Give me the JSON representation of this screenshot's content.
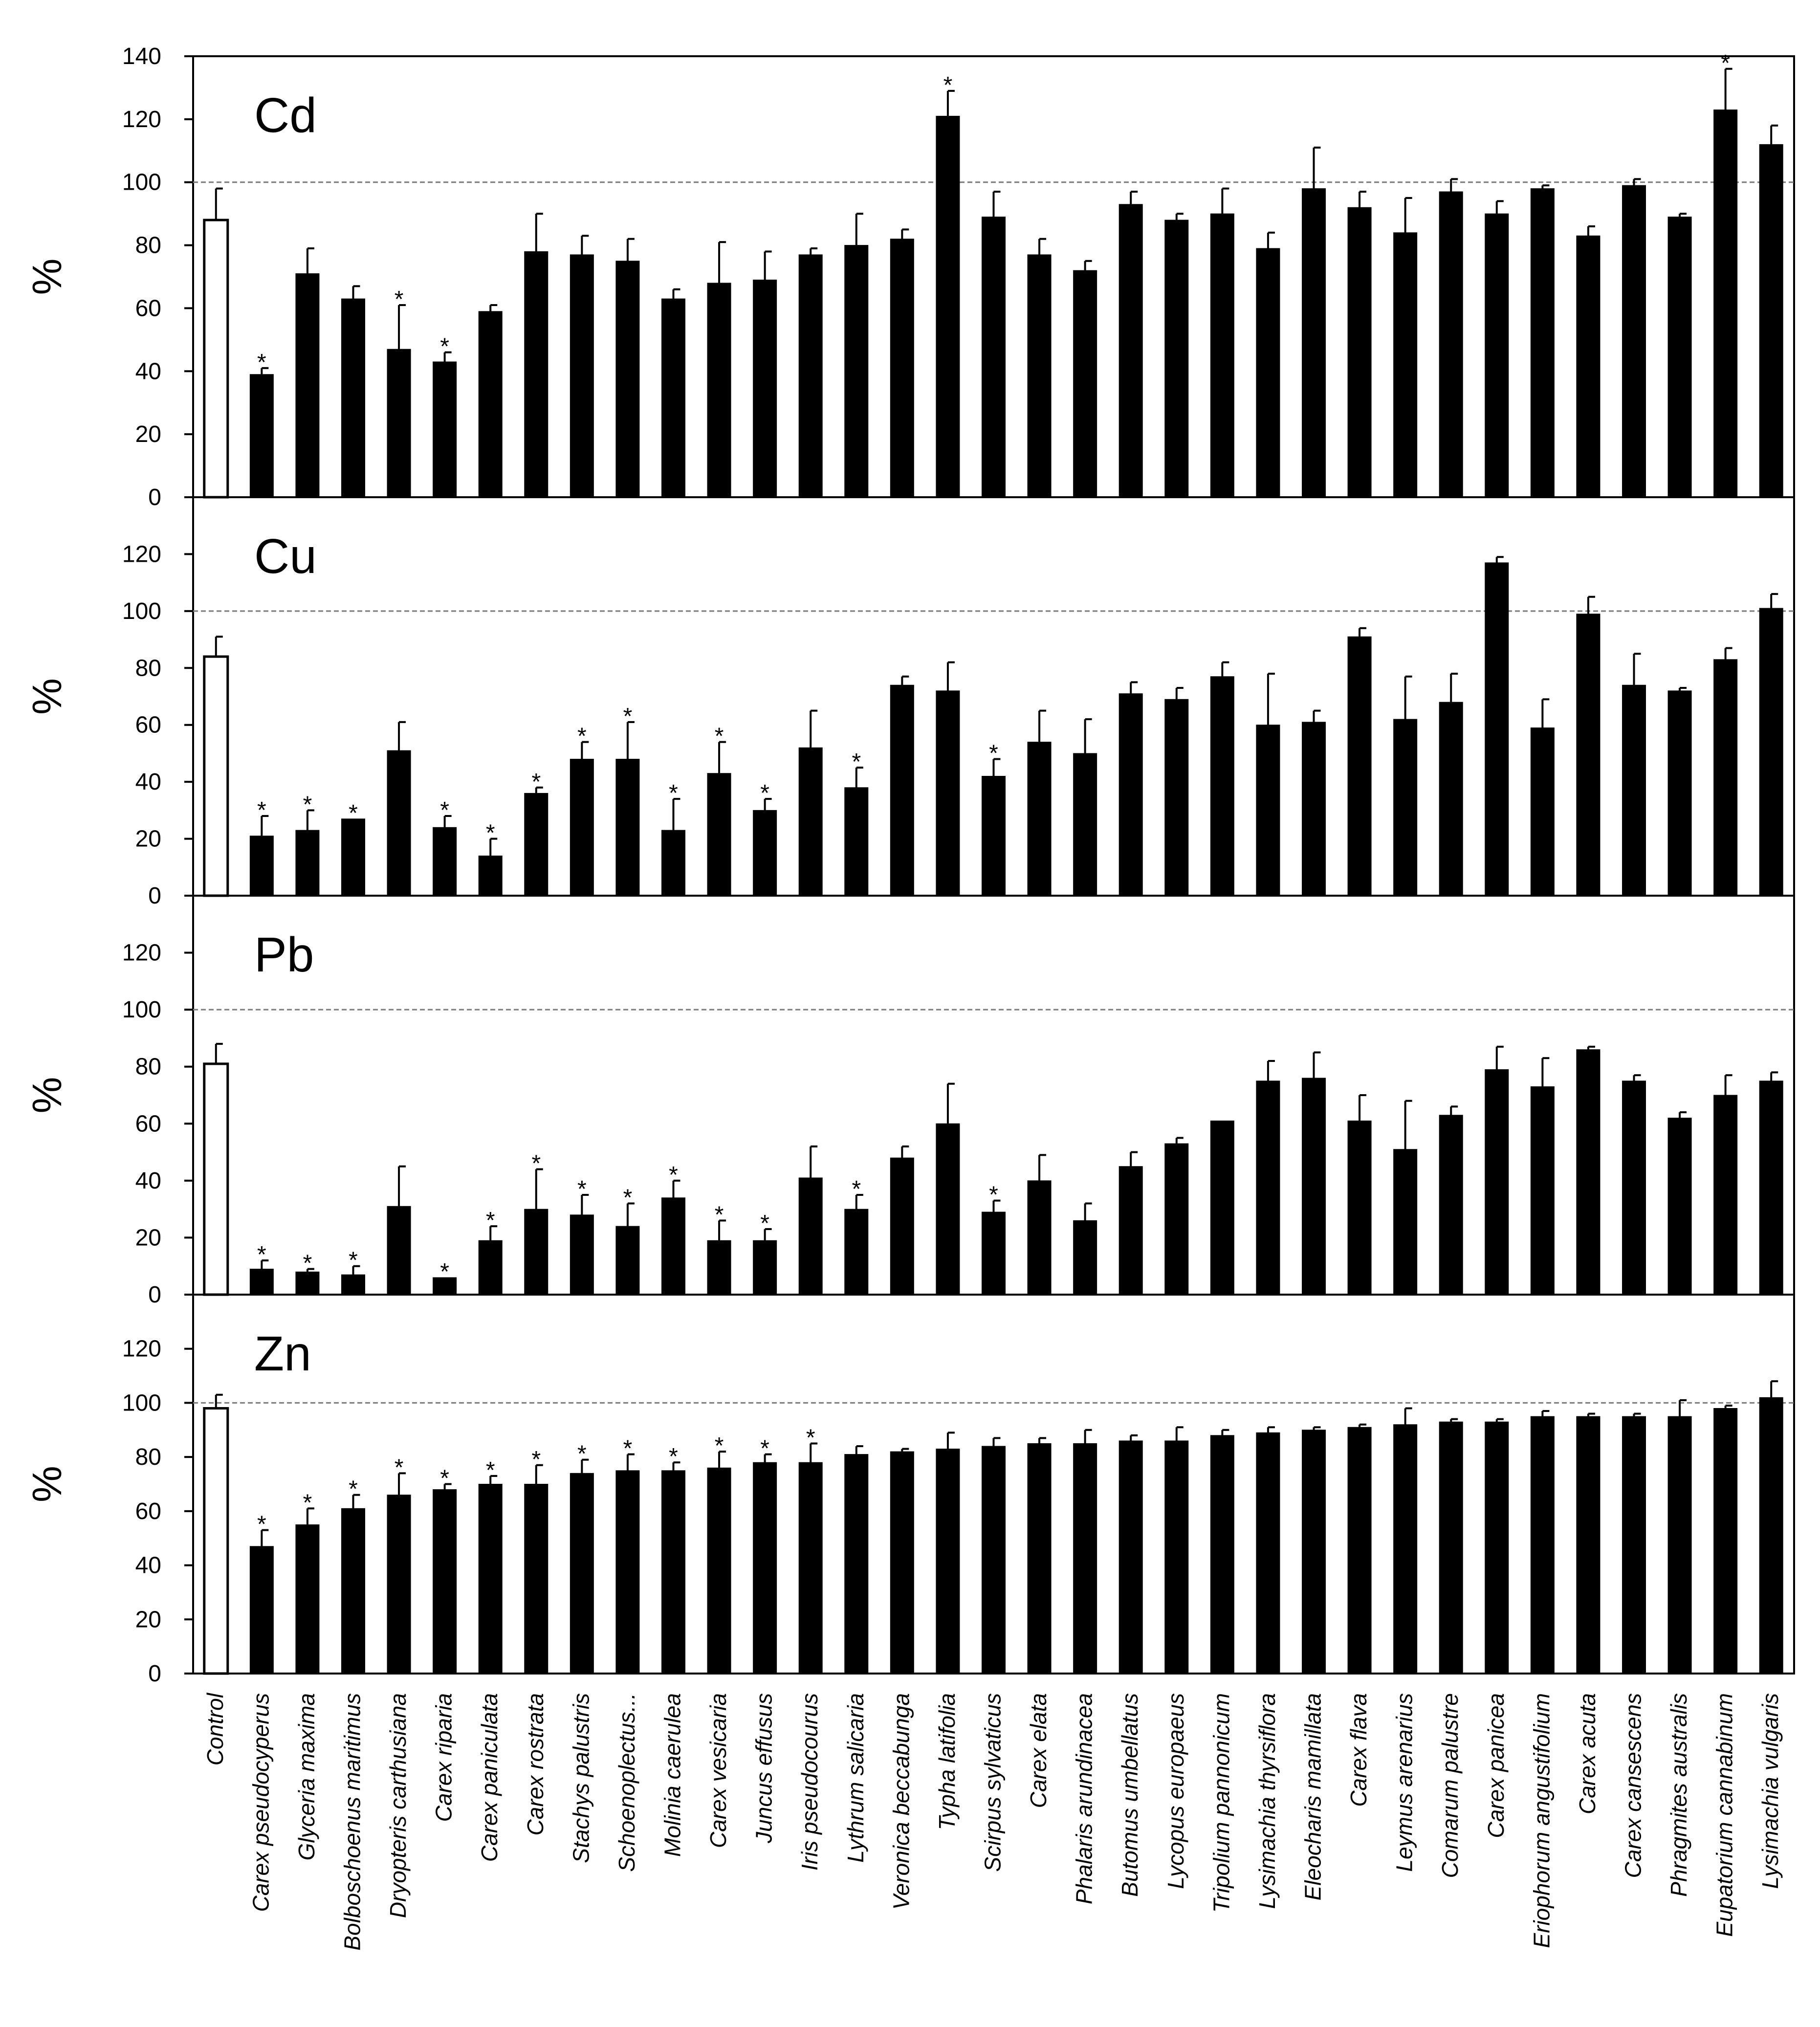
{
  "chart_data": {
    "type": "bar",
    "categories": [
      "Control",
      "Carex pseudocyperus",
      "Glyceria maxima",
      "Bolboschoenus maritimus",
      "Dryopteris carthusiana",
      "Carex riparia",
      "Carex paniculata",
      "Carex rostrata",
      "Stachys palustris",
      "Schoenoplectus...",
      "Molinia caerulea",
      "Carex vesicaria",
      "Juncus effusus",
      "Iris pseudocourus",
      "Lythrum salicaria",
      "Veronica beccabunga",
      "Typha latifolia",
      "Scirpus sylvaticus",
      "Carex elata",
      "Phalaris arundinacea",
      "Butomus umbellatus",
      "Lycopus europaeus",
      "Tripolium pannonicum",
      "Lysimachia thyrsiflora",
      "Eleocharis mamillata",
      "Carex flava",
      "Leymus arenarius",
      "Comarum palustre",
      "Carex panicea",
      "Eriophorum angustifolium",
      "Carex acuta",
      "Carex cansescens",
      "Phragmites australis",
      "Eupatorium cannabinum",
      "Lysimachia vulgaris"
    ],
    "reference_line": 100,
    "significance_marker": "*",
    "panels": [
      {
        "label": "Cd",
        "ylabel": "%",
        "ylim": [
          0,
          140
        ],
        "ticks": [
          "0",
          "20",
          "40",
          "60",
          "80",
          "100",
          "120",
          "140"
        ],
        "values": [
          88,
          39,
          71,
          63,
          47,
          43,
          59,
          78,
          77,
          75,
          63,
          68,
          69,
          77,
          80,
          82,
          121,
          89,
          77,
          72,
          93,
          88,
          90,
          79,
          98,
          92,
          84,
          97,
          90,
          98,
          83,
          99,
          89,
          123,
          112
        ],
        "errors": [
          10,
          2,
          8,
          4,
          14,
          3,
          2,
          12,
          6,
          7,
          3,
          13,
          9,
          2,
          10,
          3,
          8,
          8,
          5,
          3,
          4,
          2,
          8,
          5,
          13,
          5,
          11,
          4,
          4,
          1,
          3,
          2,
          1,
          13,
          6
        ],
        "significant": [
          1,
          4,
          5,
          16,
          33
        ]
      },
      {
        "label": "Cu",
        "ylabel": "%",
        "ylim": [
          0,
          140
        ],
        "ticks": [
          "0",
          "20",
          "40",
          "60",
          "80",
          "100",
          "120"
        ],
        "values": [
          84,
          21,
          23,
          27,
          51,
          24,
          14,
          36,
          48,
          48,
          23,
          43,
          30,
          52,
          38,
          74,
          72,
          42,
          54,
          50,
          71,
          69,
          77,
          60,
          61,
          91,
          62,
          68,
          117,
          59,
          99,
          74,
          72,
          83,
          101
        ],
        "errors": [
          7,
          7,
          7,
          0,
          10,
          4,
          6,
          2,
          6,
          13,
          11,
          11,
          4,
          13,
          7,
          3,
          10,
          6,
          11,
          12,
          4,
          4,
          5,
          18,
          4,
          3,
          15,
          10,
          2,
          10,
          6,
          11,
          1,
          4,
          5
        ],
        "significant": [
          1,
          2,
          3,
          5,
          6,
          7,
          8,
          9,
          10,
          11,
          12,
          14,
          17
        ]
      },
      {
        "label": "Pb",
        "ylabel": "%",
        "ylim": [
          0,
          140
        ],
        "ticks": [
          "0",
          "20",
          "40",
          "60",
          "80",
          "100",
          "120"
        ],
        "values": [
          81,
          9,
          8,
          7,
          31,
          6,
          19,
          30,
          28,
          24,
          34,
          19,
          19,
          41,
          30,
          48,
          60,
          29,
          40,
          26,
          45,
          53,
          61,
          75,
          76,
          61,
          51,
          63,
          79,
          73,
          86,
          75,
          62,
          70,
          75
        ],
        "errors": [
          7,
          3,
          1,
          3,
          14,
          0,
          5,
          14,
          7,
          8,
          6,
          7,
          4,
          11,
          5,
          4,
          14,
          4,
          9,
          6,
          5,
          2,
          0,
          7,
          9,
          9,
          17,
          3,
          8,
          10,
          1,
          2,
          2,
          7,
          3
        ],
        "significant": [
          1,
          2,
          3,
          5,
          6,
          7,
          8,
          9,
          10,
          11,
          12,
          14,
          17
        ]
      },
      {
        "label": "Zn",
        "ylabel": "%",
        "ylim": [
          0,
          140
        ],
        "ticks": [
          "0",
          "20",
          "40",
          "60",
          "80",
          "100",
          "120"
        ],
        "values": [
          98,
          47,
          55,
          61,
          66,
          68,
          70,
          70,
          74,
          75,
          75,
          76,
          78,
          78,
          81,
          82,
          83,
          84,
          85,
          85,
          86,
          86,
          88,
          89,
          90,
          91,
          92,
          93,
          93,
          95,
          95,
          95,
          95,
          98,
          102
        ],
        "errors": [
          5,
          6,
          6,
          5,
          8,
          2,
          3,
          7,
          5,
          6,
          3,
          6,
          3,
          7,
          3,
          1,
          6,
          3,
          2,
          5,
          2,
          5,
          2,
          2,
          1,
          1,
          6,
          1,
          1,
          2,
          1,
          1,
          6,
          1,
          6
        ],
        "significant": [
          1,
          2,
          3,
          4,
          5,
          6,
          7,
          8,
          9,
          10,
          11,
          12,
          13
        ]
      }
    ]
  }
}
